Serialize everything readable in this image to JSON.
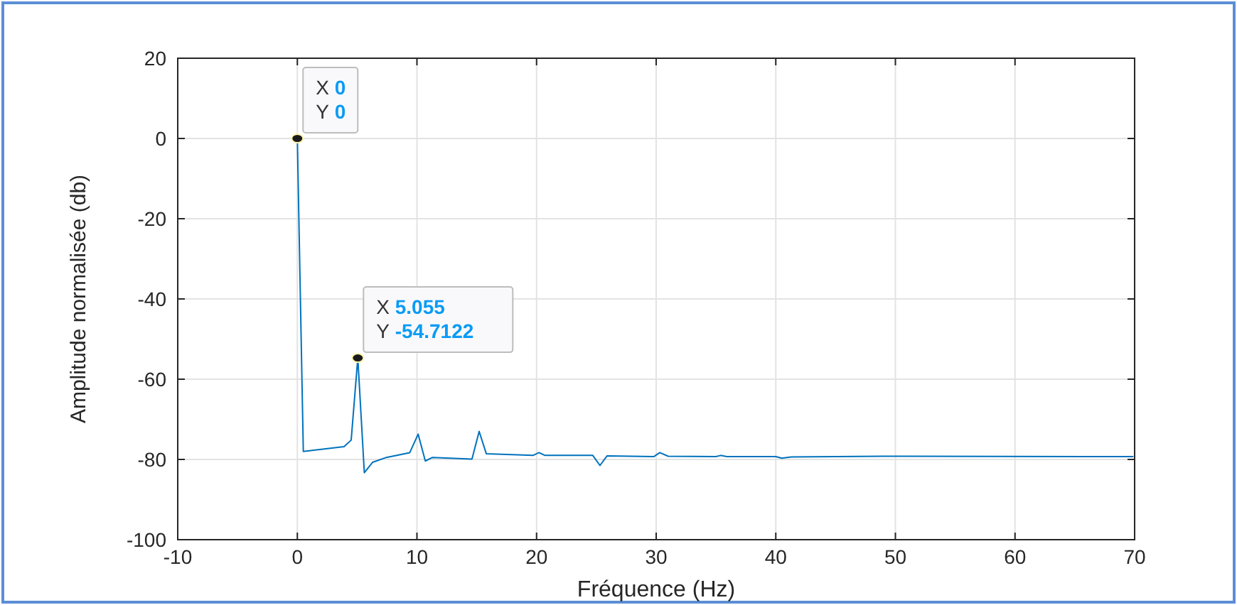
{
  "chart_data": {
    "type": "line",
    "xlabel": "Fréquence (Hz)",
    "ylabel": "Amplitude normalisée (db)",
    "xlim": [
      -10,
      70
    ],
    "xticks": [
      -10,
      0,
      10,
      20,
      30,
      40,
      50,
      60,
      70
    ],
    "ylim": [
      -100,
      20
    ],
    "yticks": [
      -100,
      -80,
      -60,
      -40,
      -20,
      0,
      20
    ],
    "grid": true,
    "series": [
      {
        "color": "#0072bd",
        "x": [
          0,
          0.5,
          3.9,
          4.5,
          5.055,
          5.6,
          6.3,
          7.45,
          9.4,
          10.1,
          10.7,
          11.3,
          14.6,
          15.2,
          15.8,
          19.7,
          20.2,
          20.7,
          24.7,
          25.3,
          25.9,
          29.8,
          30.3,
          31.0,
          35,
          35.4,
          35.9,
          40,
          40.5,
          41.3,
          48.9,
          69.9
        ],
        "values": [
          0,
          -78,
          -76.8,
          -75.2,
          -54.7122,
          -83.3,
          -80.7,
          -79.5,
          -78.3,
          -73.7,
          -80.4,
          -79.5,
          -79.9,
          -73,
          -78.6,
          -79,
          -78.3,
          -79,
          -79,
          -81.5,
          -79.1,
          -79.3,
          -78.3,
          -79.2,
          -79.3,
          -79.0,
          -79.3,
          -79.3,
          -79.7,
          -79.4,
          -79.2,
          -79.3
        ]
      },
      {
        "type": "scatter",
        "color": "#1a1a1a",
        "marker": "circle",
        "x": [
          0,
          5.055
        ],
        "values": [
          0,
          -54.7122
        ]
      }
    ],
    "annotations": [
      {
        "text": "X 0\nY 0",
        "x": 0,
        "y": 0
      },
      {
        "text": "X 5.055\nY -54.7122",
        "x": 5.055,
        "y": -54.7122
      }
    ]
  }
}
